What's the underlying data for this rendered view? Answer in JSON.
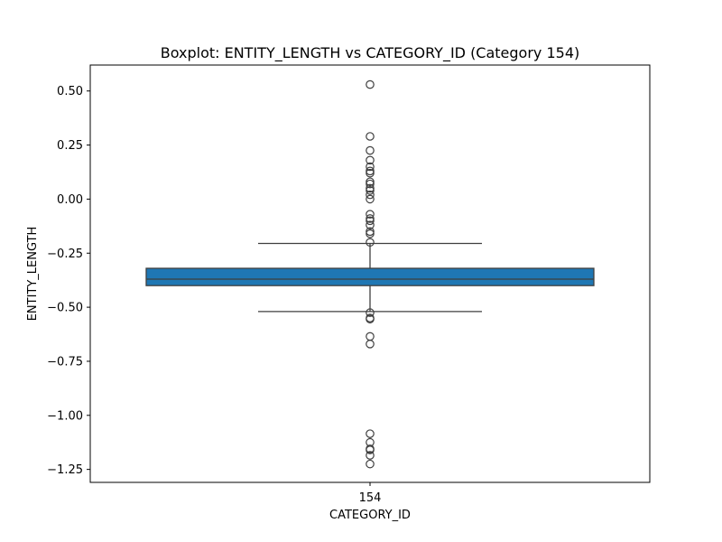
{
  "chart_data": {
    "type": "box",
    "title": "Boxplot: ENTITY_LENGTH vs CATEGORY_ID (Category 154)",
    "xlabel": "CATEGORY_ID",
    "ylabel": "ENTITY_LENGTH",
    "ylim": [
      -1.31,
      0.62
    ],
    "yticks": [
      0.5,
      0.25,
      0.0,
      -0.25,
      -0.5,
      -0.75,
      -1.0,
      -1.25
    ],
    "ytick_labels": [
      "0.50",
      "0.25",
      "0.00",
      "−0.25",
      "−0.50",
      "−0.75",
      "−1.00",
      "−1.25"
    ],
    "categories": [
      "154"
    ],
    "grid": false,
    "boxes": [
      {
        "category": "154",
        "whisker_low": -0.52,
        "q1": -0.4,
        "median": -0.37,
        "q3": -0.32,
        "whisker_high": -0.205,
        "color": "#1f77b4",
        "outliers": [
          0.53,
          0.29,
          0.225,
          0.18,
          0.15,
          0.13,
          0.12,
          0.08,
          0.07,
          0.05,
          0.04,
          0.02,
          0.0,
          -0.07,
          -0.09,
          -0.1,
          -0.12,
          -0.15,
          -0.16,
          -0.2,
          -0.525,
          -0.55,
          -0.555,
          -0.635,
          -0.67,
          -1.085,
          -1.125,
          -1.155,
          -1.16,
          -1.185,
          -1.225
        ]
      }
    ]
  }
}
